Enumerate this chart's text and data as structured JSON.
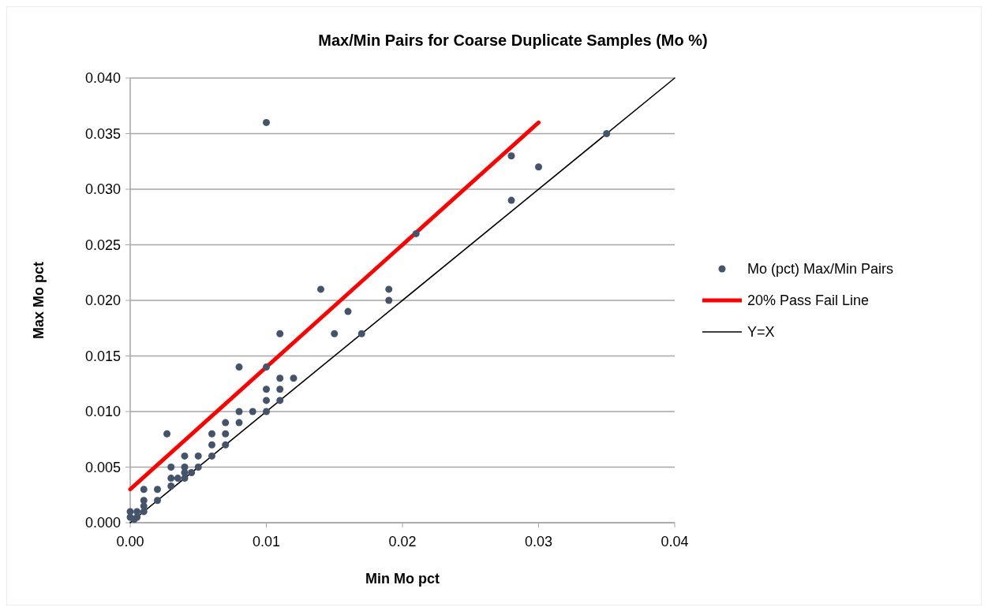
{
  "chart_data": {
    "type": "scatter",
    "title": "Max/Min Pairs for Coarse Duplicate Samples (Mo %)",
    "xlabel": "Min Mo pct",
    "ylabel": "Max Mo pct",
    "xlim": [
      0,
      0.04
    ],
    "xticks": [
      {
        "value": 0,
        "label": "0.00"
      },
      {
        "value": 0.01,
        "label": "0.01"
      },
      {
        "value": 0.02,
        "label": "0.02"
      },
      {
        "value": 0.03,
        "label": "0.03"
      },
      {
        "value": 0.04,
        "label": "0.04"
      }
    ],
    "ylim": [
      0,
      0.04
    ],
    "yticks": [
      {
        "value": 0,
        "label": "0.000"
      },
      {
        "value": 0.005,
        "label": "0.005"
      },
      {
        "value": 0.01,
        "label": "0.010"
      },
      {
        "value": 0.015,
        "label": "0.015"
      },
      {
        "value": 0.02,
        "label": "0.020"
      },
      {
        "value": 0.025,
        "label": "0.025"
      },
      {
        "value": 0.03,
        "label": "0.030"
      },
      {
        "value": 0.035,
        "label": "0.035"
      },
      {
        "value": 0.04,
        "label": "0.040"
      }
    ],
    "grid": "y",
    "legend": "right",
    "series": [
      {
        "name": "Mo (pct) Max/Min Pairs",
        "marker": "circle",
        "color": "#44546a",
        "x": [
          0.01,
          0.035,
          0.028,
          0.03,
          0.028,
          0.021,
          0.014,
          0.019,
          0.019,
          0.016,
          0.011,
          0.015,
          0.017,
          0.008,
          0.01,
          0.011,
          0.012,
          0.01,
          0.011,
          0.01,
          0.011,
          0.01,
          0.008,
          0.009,
          0.008,
          0.007,
          0.007,
          0.006,
          0.0027,
          0.006,
          0.007,
          0.006,
          0.005,
          0.004,
          0.005,
          0.004,
          0.003,
          0.004,
          0.0045,
          0.004,
          0.0035,
          0.003,
          0.003,
          0.002,
          0.001,
          0.002,
          0.001,
          0.001,
          0.001,
          0.0005,
          0,
          0,
          0.0005,
          0.0003
        ],
        "values": [
          0.036,
          0.035,
          0.033,
          0.032,
          0.029,
          0.026,
          0.021,
          0.021,
          0.02,
          0.019,
          0.017,
          0.017,
          0.017,
          0.014,
          0.014,
          0.013,
          0.013,
          0.012,
          0.012,
          0.011,
          0.011,
          0.01,
          0.01,
          0.01,
          0.009,
          0.009,
          0.008,
          0.008,
          0.008,
          0.007,
          0.007,
          0.006,
          0.006,
          0.006,
          0.005,
          0.005,
          0.005,
          0.0045,
          0.0045,
          0.004,
          0.004,
          0.004,
          0.0033,
          0.003,
          0.003,
          0.002,
          0.002,
          0.0015,
          0.001,
          0.001,
          0.001,
          0.0005,
          0.0005,
          0.0003
        ]
      },
      {
        "name": "20% Pass Fail Line",
        "type": "line",
        "marker": "none",
        "color": "#ff0000",
        "x": [
          0,
          0.03
        ],
        "values": [
          0.003,
          0.036
        ]
      },
      {
        "name": "Y=X",
        "type": "line",
        "marker": "none",
        "color": "#000000",
        "x": [
          0,
          0.04
        ],
        "values": [
          0,
          0.04
        ]
      }
    ]
  }
}
